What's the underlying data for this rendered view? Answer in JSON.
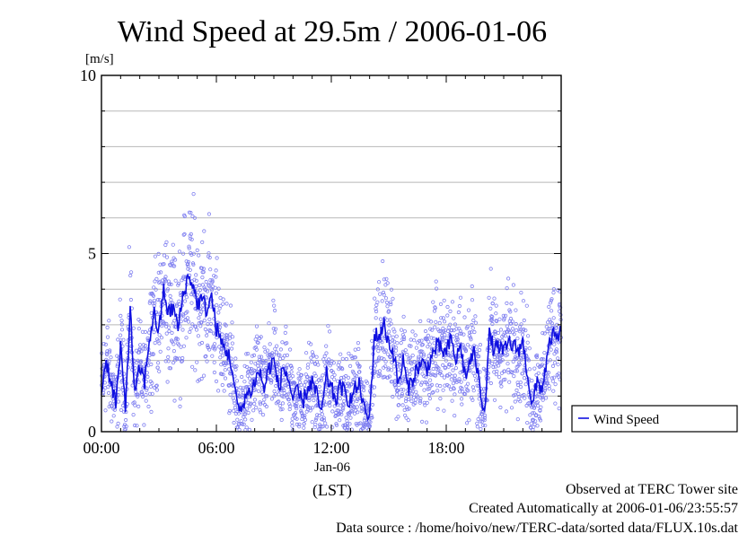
{
  "chart_data": {
    "type": "scatter",
    "title": "Wind Speed at 29.5m / 2006-01-06",
    "ylabel": "[m/s]",
    "ylim": [
      0,
      10
    ],
    "y_ticks": [
      "0",
      "5",
      "10"
    ],
    "xlim": [
      "00:00",
      "24:00"
    ],
    "x_ticks": [
      "00:00",
      "06:00",
      "12:00",
      "18:00"
    ],
    "x_date": "Jan-06",
    "x_unit": "(LST)",
    "grid": true,
    "legend_position": "right",
    "series": [
      {
        "name": "Wind Speed",
        "color": "#1010e0",
        "scatter_color": "#7f7ff0",
        "hours": [
          0,
          0.25,
          0.5,
          0.75,
          1,
          1.25,
          1.5,
          1.75,
          2,
          2.25,
          2.5,
          2.75,
          3,
          3.25,
          3.5,
          3.75,
          4,
          4.25,
          4.5,
          4.75,
          5,
          5.25,
          5.5,
          5.75,
          6,
          6.25,
          6.5,
          6.75,
          7,
          7.25,
          7.5,
          7.75,
          8,
          8.25,
          8.5,
          8.75,
          9,
          9.25,
          9.5,
          9.75,
          10,
          10.25,
          10.5,
          10.75,
          11,
          11.25,
          11.5,
          11.75,
          12,
          12.25,
          12.5,
          12.75,
          13,
          13.25,
          13.5,
          13.75,
          14,
          14.25,
          14.5,
          14.75,
          15,
          15.25,
          15.5,
          15.75,
          16,
          16.25,
          16.5,
          16.75,
          17,
          17.25,
          17.5,
          17.75,
          18,
          18.25,
          18.5,
          18.75,
          19,
          19.25,
          19.5,
          19.75,
          20,
          20.25,
          20.5,
          20.75,
          21,
          21.25,
          21.5,
          21.75,
          22,
          22.25,
          22.5,
          22.75,
          23,
          23.25,
          23.5,
          23.75,
          24
        ],
        "values": [
          1.2,
          2.0,
          1.4,
          0.8,
          2.3,
          0.7,
          3.4,
          1.0,
          1.8,
          1.4,
          2.6,
          3.3,
          2.8,
          4.0,
          3.3,
          3.5,
          2.9,
          3.8,
          4.3,
          4.2,
          3.6,
          3.7,
          3.4,
          3.8,
          2.9,
          2.5,
          2.3,
          2.0,
          1.0,
          0.5,
          1.0,
          1.1,
          1.4,
          1.7,
          1.2,
          1.8,
          2.0,
          1.2,
          1.8,
          1.5,
          0.9,
          1.1,
          0.8,
          1.2,
          1.4,
          1.0,
          0.5,
          1.6,
          1.2,
          0.9,
          1.3,
          1.0,
          0.9,
          1.2,
          1.3,
          0.5,
          0.4,
          2.7,
          2.7,
          3.0,
          2.5,
          2.2,
          1.3,
          2.0,
          1.2,
          1.5,
          1.8,
          1.9,
          1.8,
          2.1,
          2.4,
          2.3,
          2.2,
          2.6,
          2.0,
          2.4,
          1.5,
          2.0,
          2.2,
          1.2,
          0.6,
          2.7,
          2.3,
          2.4,
          2.2,
          2.5,
          2.4,
          2.3,
          2.5,
          1.6,
          0.7,
          1.4,
          1.2,
          2.0,
          2.7,
          2.6,
          2.8
        ]
      }
    ]
  },
  "footer": {
    "line1": "Observed at TERC Tower site",
    "line2": "Created Automatically at 2006-01-06/23:55:57",
    "line3": "Data source : /home/hoivo/new/TERC-data/sorted  data/FLUX.10s.dat"
  }
}
